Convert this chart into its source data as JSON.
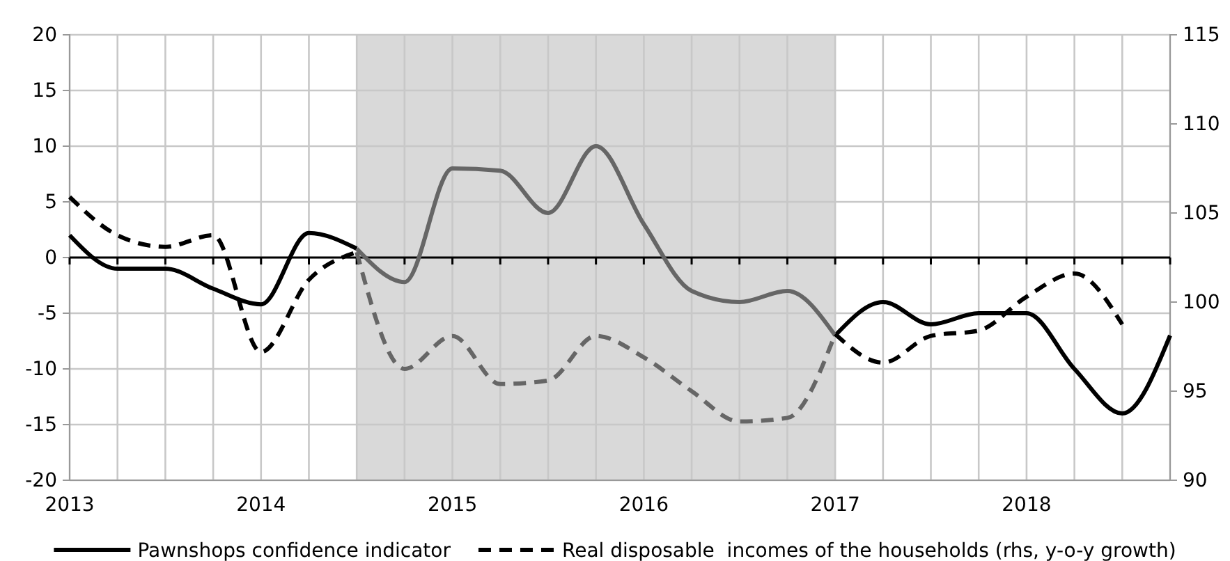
{
  "chart_data": {
    "type": "line",
    "x": [
      2013,
      2013.25,
      2013.5,
      2013.75,
      2014,
      2014.25,
      2014.5,
      2014.75,
      2015,
      2015.25,
      2015.5,
      2015.75,
      2016,
      2016.25,
      2016.5,
      2016.75,
      2017,
      2017.25,
      2017.5,
      2017.75,
      2018,
      2018.25,
      2018.5,
      2018.75
    ],
    "series": [
      {
        "name": "Pawnshops confidence indicator",
        "color": "#000000",
        "line_style": "solid",
        "values": [
          2,
          -1,
          -1,
          -2.8,
          -4.2,
          2.2,
          0.8,
          null,
          null,
          null,
          null,
          null,
          null,
          null,
          null,
          null,
          -7,
          -4,
          -6,
          -5,
          -5,
          -10,
          -14,
          -7
        ]
      },
      {
        "color": "#666666",
        "line_style": "solid",
        "values": [
          null,
          null,
          null,
          null,
          null,
          null,
          0.8,
          -2.2,
          8,
          7.8,
          4,
          10,
          3,
          -3,
          -4,
          -3,
          -7,
          null,
          null,
          null,
          null,
          null,
          null,
          null
        ]
      },
      {
        "name": "Real disposable  incomes of the households (rhs, y-o-y growth)",
        "color": "#000000",
        "line_style": "dashed",
        "axis": "y2",
        "values": [
          105.9,
          103.75,
          103.1,
          103.75,
          97.2,
          101.25,
          102.8,
          null,
          null,
          null,
          null,
          null,
          null,
          null,
          null,
          null,
          98.2,
          96.6,
          98.1,
          98.4,
          100.3,
          101.6,
          98.75,
          null
        ]
      },
      {
        "color": "#666666",
        "line_style": "dashed",
        "axis": "y2",
        "values": [
          null,
          null,
          null,
          null,
          null,
          null,
          102.8,
          96.25,
          98.1,
          95.4,
          95.6,
          98.1,
          96.9,
          95,
          93.3,
          93.5,
          98.2,
          null,
          null,
          null,
          null,
          null,
          null,
          null
        ]
      }
    ],
    "xlim": [
      2013,
      2018.75
    ],
    "xticks": [
      2013,
      {
        "value": 2013.25,
        "label": null
      },
      {
        "value": 2013.5,
        "label": null
      },
      {
        "value": 2013.75,
        "label": null
      },
      2014,
      {
        "value": 2014.25,
        "label": null
      },
      {
        "value": 2014.5,
        "label": null
      },
      {
        "value": 2014.75,
        "label": null
      },
      2015,
      {
        "value": 2015.25,
        "label": null
      },
      {
        "value": 2015.5,
        "label": null
      },
      {
        "value": 2015.75,
        "label": null
      },
      2016,
      {
        "value": 2016.25,
        "label": null
      },
      {
        "value": 2016.5,
        "label": null
      },
      {
        "value": 2016.75,
        "label": null
      },
      2017,
      {
        "value": 2017.25,
        "label": null
      },
      {
        "value": 2017.5,
        "label": null
      },
      {
        "value": 2017.75,
        "label": null
      },
      2018,
      {
        "value": 2018.25,
        "label": null
      },
      {
        "value": 2018.5,
        "label": null
      },
      {
        "value": 2018.75,
        "label": null
      }
    ],
    "ylim": [
      -20,
      20
    ],
    "yticks": [
      -20,
      -15,
      -10,
      -5,
      0,
      5,
      10,
      15,
      20
    ],
    "y2lim": [
      90,
      115
    ],
    "y2ticks": [
      90,
      95,
      100,
      105,
      110,
      115
    ],
    "bands": [
      {
        "axis": "x",
        "from": 2014.5,
        "to": 2017,
        "color": "#d9d9d9"
      }
    ],
    "ref_lines": [
      {
        "axis": "y",
        "value": 0,
        "color": "#000000"
      }
    ],
    "grid": true,
    "legend": "bottom",
    "marker": "none"
  }
}
